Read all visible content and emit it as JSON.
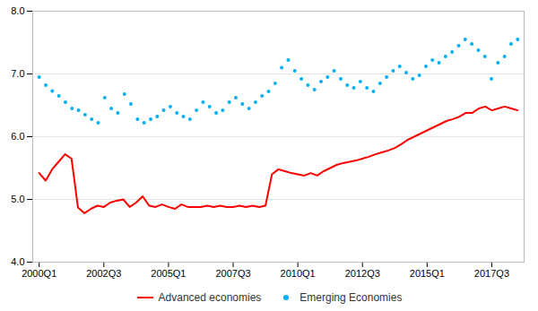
{
  "chart_data": {
    "type": "line",
    "xlim": [
      -1,
      75
    ],
    "xticks": [
      {
        "value": 0,
        "label": "2000Q1"
      },
      {
        "value": 10,
        "label": "2002Q3"
      },
      {
        "value": 20,
        "label": "2005Q1"
      },
      {
        "value": 30,
        "label": "2007Q3"
      },
      {
        "value": 40,
        "label": "2010Q1"
      },
      {
        "value": 50,
        "label": "2012Q3"
      },
      {
        "value": 60,
        "label": "2015Q1"
      },
      {
        "value": 70,
        "label": "2017Q3"
      }
    ],
    "ylim": [
      4,
      8
    ],
    "yticks": [
      4,
      5,
      6,
      7,
      8
    ],
    "grid": true,
    "legend": "bottom",
    "series": [
      {
        "name": "Advanced economies",
        "type": "line",
        "line_style": "solid",
        "color": "#ff0000",
        "x": [
          0,
          1,
          2,
          3,
          4,
          5,
          6,
          7,
          8,
          9,
          10,
          11,
          12,
          13,
          14,
          15,
          16,
          17,
          18,
          19,
          20,
          21,
          22,
          23,
          24,
          25,
          26,
          27,
          28,
          29,
          30,
          31,
          32,
          33,
          34,
          35,
          36,
          37,
          38,
          39,
          40,
          41,
          42,
          43,
          44,
          45,
          46,
          47,
          48,
          49,
          50,
          51,
          52,
          53,
          54,
          55,
          56,
          57,
          58,
          59,
          60,
          61,
          62,
          63,
          64,
          65,
          66,
          67,
          68,
          69,
          70,
          71,
          72,
          73,
          74
        ],
        "values": [
          5.42,
          5.3,
          5.48,
          5.6,
          5.72,
          5.65,
          4.87,
          4.78,
          4.85,
          4.9,
          4.88,
          4.95,
          4.98,
          5.0,
          4.88,
          4.95,
          5.05,
          4.9,
          4.88,
          4.92,
          4.88,
          4.85,
          4.92,
          4.88,
          4.88,
          4.88,
          4.9,
          4.88,
          4.9,
          4.88,
          4.88,
          4.9,
          4.88,
          4.9,
          4.88,
          4.9,
          5.4,
          5.48,
          5.45,
          5.42,
          5.4,
          5.38,
          5.42,
          5.38,
          5.45,
          5.5,
          5.55,
          5.58,
          5.6,
          5.62,
          5.65,
          5.68,
          5.72,
          5.75,
          5.78,
          5.82,
          5.88,
          5.95,
          6.0,
          6.05,
          6.1,
          6.15,
          6.2,
          6.25,
          6.28,
          6.32,
          6.38,
          6.38,
          6.45,
          6.48,
          6.42,
          6.45,
          6.48,
          6.45,
          6.42
        ]
      },
      {
        "name": "Emerging Economies",
        "type": "scatter",
        "marker": "circle",
        "color": "#00b0f0",
        "x": [
          0,
          1.0137,
          2.0274,
          3.0411,
          4.0548,
          5.0685,
          6.0822,
          7.0959,
          8.1096,
          9.1233,
          10.137,
          11.1507,
          12.1644,
          13.1781,
          14.1918,
          15.2055,
          16.2192,
          17.2329,
          18.2466,
          19.2603,
          20.274,
          21.2877,
          22.3014,
          23.3151,
          24.3288,
          25.3425,
          26.3562,
          27.3699,
          28.3836,
          29.3973,
          30.411,
          31.4247,
          32.4384,
          33.4521,
          34.4658,
          35.4795,
          36.4932,
          37.5068,
          38.5205,
          39.5342,
          40.5479,
          41.5616,
          42.5753,
          43.589,
          44.6027,
          45.6164,
          46.6301,
          47.6438,
          48.6575,
          49.6712,
          50.6849,
          51.6986,
          52.7123,
          53.726,
          54.7397,
          55.7534,
          56.7671,
          57.7808,
          58.7945,
          59.8082,
          60.8219,
          61.8356,
          62.8493,
          63.863,
          64.8767,
          65.8904,
          66.9041,
          67.9178,
          68.9315,
          69.9452,
          70.9589,
          71.9726,
          72.9863,
          74
        ],
        "values": [
          6.95,
          6.82,
          6.73,
          6.65,
          6.55,
          6.45,
          6.42,
          6.35,
          6.28,
          6.22,
          6.62,
          6.45,
          6.38,
          6.68,
          6.52,
          6.28,
          6.22,
          6.28,
          6.32,
          6.42,
          6.48,
          6.38,
          6.32,
          6.28,
          6.42,
          6.55,
          6.48,
          6.38,
          6.42,
          6.55,
          6.62,
          6.52,
          6.45,
          6.55,
          6.65,
          6.72,
          6.85,
          7.1,
          7.22,
          7.05,
          6.92,
          6.82,
          6.75,
          6.88,
          6.95,
          7.05,
          6.92,
          6.82,
          6.78,
          6.88,
          6.78,
          6.72,
          6.85,
          6.95,
          7.05,
          7.12,
          7.02,
          6.92,
          6.98,
          7.12,
          7.22,
          7.18,
          7.28,
          7.35,
          7.45,
          7.55,
          7.48,
          7.38,
          7.28,
          6.92,
          7.18,
          7.28,
          7.48,
          7.55
        ]
      }
    ]
  }
}
